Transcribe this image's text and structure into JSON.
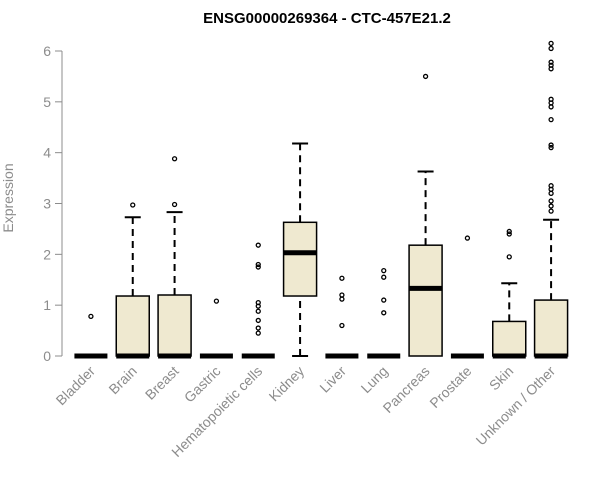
{
  "chart_data": {
    "type": "boxplot",
    "title": "ENSG00000269364 - CTC-457E21.2",
    "xlabel": "",
    "ylabel": "Expression",
    "ylim": [
      0,
      6.2
    ],
    "yticks": [
      0,
      1,
      2,
      3,
      4,
      5,
      6
    ],
    "box_fill": "#efe9d0",
    "categories": [
      "Bladder",
      "Brain",
      "Breast",
      "Gastric",
      "Hematopoietic cells",
      "Kidney",
      "Liver",
      "Lung",
      "Pancreas",
      "Prostate",
      "Skin",
      "Unknown / Other"
    ],
    "boxes": [
      {
        "q1": 0,
        "median": 0,
        "q3": 0,
        "wlow": 0,
        "whigh": 0,
        "outliers": [
          0.78
        ]
      },
      {
        "q1": 0,
        "median": 0,
        "q3": 1.18,
        "wlow": 0,
        "whigh": 2.73,
        "outliers": [
          2.97
        ]
      },
      {
        "q1": 0,
        "median": 0,
        "q3": 1.2,
        "wlow": 0,
        "whigh": 2.83,
        "outliers": [
          2.98,
          3.88
        ]
      },
      {
        "q1": 0,
        "median": 0,
        "q3": 0,
        "wlow": 0,
        "whigh": 0,
        "outliers": [
          1.08
        ]
      },
      {
        "q1": 0,
        "median": 0,
        "q3": 0,
        "wlow": 0,
        "whigh": 0,
        "outliers": [
          0.45,
          0.55,
          0.7,
          0.88,
          0.98,
          1.05,
          1.75,
          1.8,
          2.18
        ]
      },
      {
        "q1": 1.18,
        "median": 2.03,
        "q3": 2.63,
        "wlow": 0,
        "whigh": 4.18,
        "outliers": []
      },
      {
        "q1": 0,
        "median": 0,
        "q3": 0,
        "wlow": 0,
        "whigh": 0,
        "outliers": [
          0.6,
          1.12,
          1.2,
          1.53
        ]
      },
      {
        "q1": 0,
        "median": 0,
        "q3": 0,
        "wlow": 0,
        "whigh": 0,
        "outliers": [
          0.85,
          1.1,
          1.55,
          1.68
        ]
      },
      {
        "q1": 0,
        "median": 1.33,
        "q3": 2.18,
        "wlow": 0,
        "whigh": 3.63,
        "outliers": [
          5.5
        ]
      },
      {
        "q1": 0,
        "median": 0,
        "q3": 0,
        "wlow": 0,
        "whigh": 0,
        "outliers": [
          2.32
        ]
      },
      {
        "q1": 0,
        "median": 0,
        "q3": 0.68,
        "wlow": 0,
        "whigh": 1.43,
        "outliers": [
          1.95,
          2.4,
          2.45
        ]
      },
      {
        "q1": 0,
        "median": 0,
        "q3": 1.1,
        "wlow": 0,
        "whigh": 2.68,
        "outliers": [
          2.85,
          2.95,
          3.05,
          3.2,
          3.28,
          3.35,
          4.1,
          4.15,
          4.65,
          4.9,
          4.98,
          5.05,
          5.65,
          5.72,
          5.78,
          6.05,
          6.15
        ]
      }
    ]
  }
}
